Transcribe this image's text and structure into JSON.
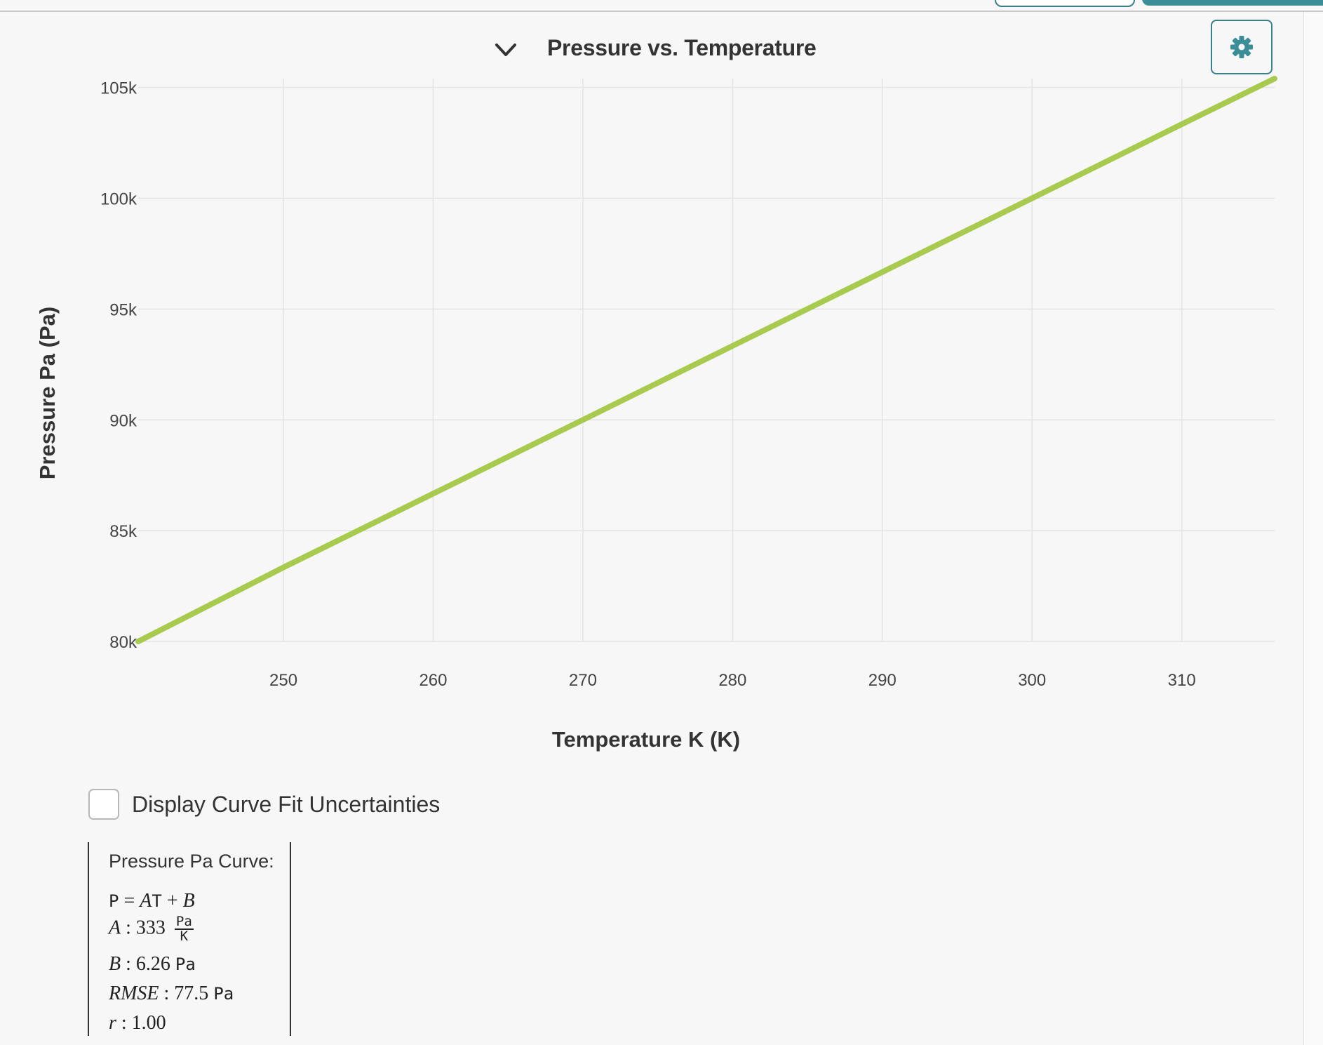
{
  "header": {
    "title": "Pressure vs. Temperature"
  },
  "icons": {
    "collapse": "chevron-down-icon",
    "settings": "gear-icon"
  },
  "colors": {
    "line": "#a8cb4f",
    "accent": "#3b8d97",
    "grid": "#e3e3e3"
  },
  "chart_data": {
    "type": "line",
    "xlabel": "Temperature K (K)",
    "ylabel": "Pressure Pa (Pa)",
    "xlim": [
      240.3,
      316.2
    ],
    "ylim": [
      80000,
      105400
    ],
    "x_ticks": [
      250,
      260,
      270,
      280,
      290,
      300,
      310
    ],
    "x_tick_labels": [
      "250",
      "260",
      "270",
      "280",
      "290",
      "300",
      "310"
    ],
    "y_ticks": [
      80000,
      85000,
      90000,
      95000,
      100000,
      105000
    ],
    "y_tick_labels": [
      "80k",
      "85k",
      "90k",
      "95k",
      "100k",
      "105k"
    ],
    "grid": true,
    "series": [
      {
        "x": [
          240.3,
          250,
          260,
          270,
          280,
          290,
          300,
          310,
          316.2
        ],
        "y": [
          80000,
          83340,
          86670,
          90000,
          93340,
          96670,
          100000,
          103340,
          105400
        ]
      }
    ]
  },
  "controls": {
    "uncertainty_label": "Display Curve Fit Uncertainties",
    "uncertainty_checked": false
  },
  "fit": {
    "title": "Pressure Pa Curve:",
    "eq_lhs": "P",
    "eq_eq": " = ",
    "eq_A": "A",
    "eq_T": "T",
    "eq_plus": " + ",
    "eq_B": "B",
    "A_name": "A",
    "A_value": " : 333 ",
    "A_unit_num": "Pa",
    "A_unit_den": "K",
    "B_name": "B",
    "B_value": " : 6.26 ",
    "B_unit": "Pa",
    "rmse_name": "RMSE",
    "rmse_value": " : 77.5 ",
    "rmse_unit": "Pa",
    "r_name": "r",
    "r_value": " : 1.00"
  }
}
